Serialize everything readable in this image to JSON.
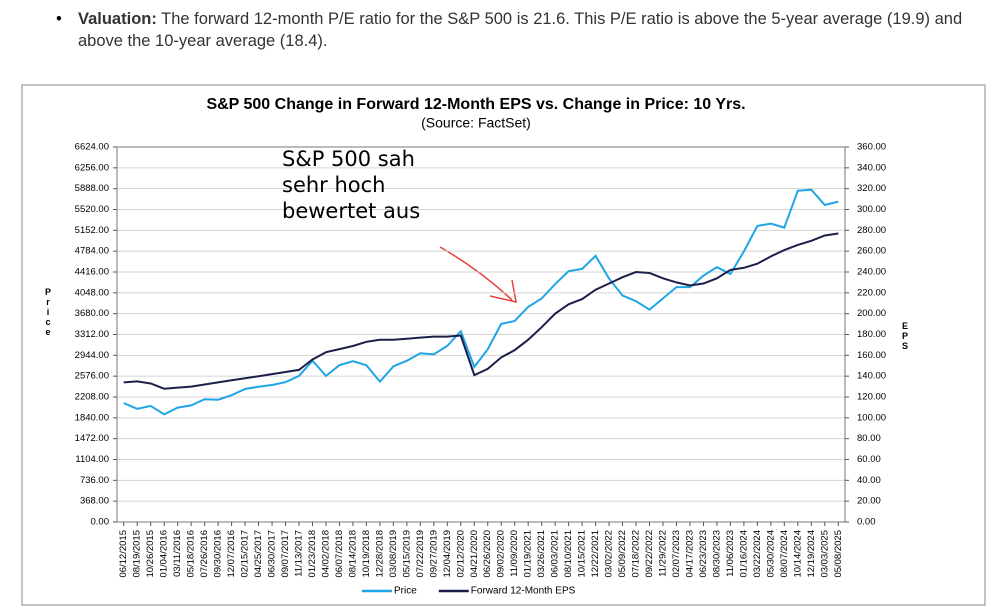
{
  "bullet": {
    "label": "Valuation:",
    "text": "The forward 12-month P/E ratio for the S&P 500 is 21.6. This P/E ratio is above the 5-year average (19.9) and above the 10-year average (18.4)."
  },
  "chart_data": {
    "type": "line",
    "title": "S&P 500 Change in Forward 12-Month EPS vs. Change in Price: 10 Yrs.",
    "subtitle": "(Source: FactSet)",
    "annotation": [
      "S&P 500 sah",
      "sehr hoch",
      "bewertet aus"
    ],
    "ylabel": "Price",
    "y2label": "EPS",
    "categories": [
      "06/12/2015",
      "08/19/2015",
      "10/26/2015",
      "01/04/2016",
      "03/11/2016",
      "05/18/2016",
      "07/26/2016",
      "09/30/2016",
      "12/07/2016",
      "02/15/2017",
      "04/25/2017",
      "06/30/2017",
      "09/07/2017",
      "11/13/2017",
      "01/23/2018",
      "04/02/2018",
      "06/07/2018",
      "08/14/2018",
      "10/19/2018",
      "12/28/2018",
      "03/08/2019",
      "05/15/2019",
      "07/22/2019",
      "09/27/2019",
      "12/04/2019",
      "02/12/2020",
      "04/21/2020",
      "06/26/2020",
      "09/02/2020",
      "11/09/2020",
      "01/19/2021",
      "03/26/2021",
      "06/03/2021",
      "08/10/2021",
      "10/15/2021",
      "12/22/2021",
      "03/02/2022",
      "05/09/2022",
      "07/18/2022",
      "09/22/2022",
      "11/29/2022",
      "02/07/2023",
      "04/17/2023",
      "06/23/2023",
      "08/30/2023",
      "11/06/2023",
      "01/16/2024",
      "03/22/2024",
      "05/30/2024",
      "08/07/2024",
      "10/14/2024",
      "12/19/2024",
      "03/03/2025",
      "05/08/2025"
    ],
    "series": [
      {
        "name": "Price",
        "color": "#1fa5e6",
        "values": [
          2100,
          2000,
          2050,
          1900,
          2020,
          2060,
          2170,
          2160,
          2240,
          2350,
          2390,
          2420,
          2470,
          2580,
          2850,
          2580,
          2770,
          2840,
          2770,
          2480,
          2750,
          2850,
          2980,
          2960,
          3110,
          3370,
          2740,
          3050,
          3500,
          3550,
          3800,
          3950,
          4200,
          4430,
          4470,
          4700,
          4300,
          4000,
          3900,
          3750,
          3950,
          4150,
          4150,
          4350,
          4500,
          4380,
          4780,
          5230,
          5270,
          5200,
          5850,
          5870,
          5600,
          5660
        ]
      },
      {
        "name": "Forward 12-Month EPS",
        "color": "#1b1f4a",
        "axis": "y2",
        "values": [
          134,
          135,
          133,
          128,
          129,
          130,
          132,
          134,
          136,
          138,
          140,
          142,
          144,
          146,
          156,
          163,
          166,
          169,
          173,
          175,
          175,
          176,
          177,
          178,
          178,
          179,
          141,
          147,
          158,
          165,
          175,
          187,
          200,
          209,
          214,
          223,
          229,
          235,
          240,
          239,
          234,
          230,
          227,
          229,
          234,
          242,
          244,
          248,
          255,
          261,
          266,
          270,
          275,
          277
        ]
      }
    ],
    "ylim": [
      0,
      6624
    ],
    "yticks": [
      {
        "value": 0,
        "label": "0.00"
      },
      {
        "value": 368,
        "label": "368.00"
      },
      {
        "value": 736,
        "label": "736.00"
      },
      {
        "value": 1104,
        "label": "1104.00"
      },
      {
        "value": 1472,
        "label": "1472.00"
      },
      {
        "value": 1840,
        "label": "1840.00"
      },
      {
        "value": 2208,
        "label": "2208.00"
      },
      {
        "value": 2576,
        "label": "2576.00"
      },
      {
        "value": 2944,
        "label": "2944.00"
      },
      {
        "value": 3312,
        "label": "3312.00"
      },
      {
        "value": 3680,
        "label": "3680.00"
      },
      {
        "value": 4048,
        "label": "4048.00"
      },
      {
        "value": 4416,
        "label": "4416.00"
      },
      {
        "value": 4784,
        "label": "4784.00"
      },
      {
        "value": 5152,
        "label": "5152.00"
      },
      {
        "value": 5520,
        "label": "5520.00"
      },
      {
        "value": 5888,
        "label": "5888.00"
      },
      {
        "value": 6256,
        "label": "6256.00"
      },
      {
        "value": 6624,
        "label": "6624.00"
      }
    ],
    "y2lim": [
      0,
      360
    ],
    "y2ticks": [
      {
        "value": 0,
        "label": "0.00"
      },
      {
        "value": 20,
        "label": "20.00"
      },
      {
        "value": 40,
        "label": "40.00"
      },
      {
        "value": 60,
        "label": "60.00"
      },
      {
        "value": 80,
        "label": "80.00"
      },
      {
        "value": 100,
        "label": "100.00"
      },
      {
        "value": 120,
        "label": "120.00"
      },
      {
        "value": 140,
        "label": "140.00"
      },
      {
        "value": 160,
        "label": "160.00"
      },
      {
        "value": 180,
        "label": "180.00"
      },
      {
        "value": 200,
        "label": "200.00"
      },
      {
        "value": 220,
        "label": "220.00"
      },
      {
        "value": 240,
        "label": "240.00"
      },
      {
        "value": 260,
        "label": "260.00"
      },
      {
        "value": 280,
        "label": "280.00"
      },
      {
        "value": 300,
        "label": "300.00"
      },
      {
        "value": 320,
        "label": "320.00"
      },
      {
        "value": 340,
        "label": "340.00"
      },
      {
        "value": 360,
        "label": "360.00"
      }
    ],
    "grid": true,
    "legend": "bottom"
  }
}
